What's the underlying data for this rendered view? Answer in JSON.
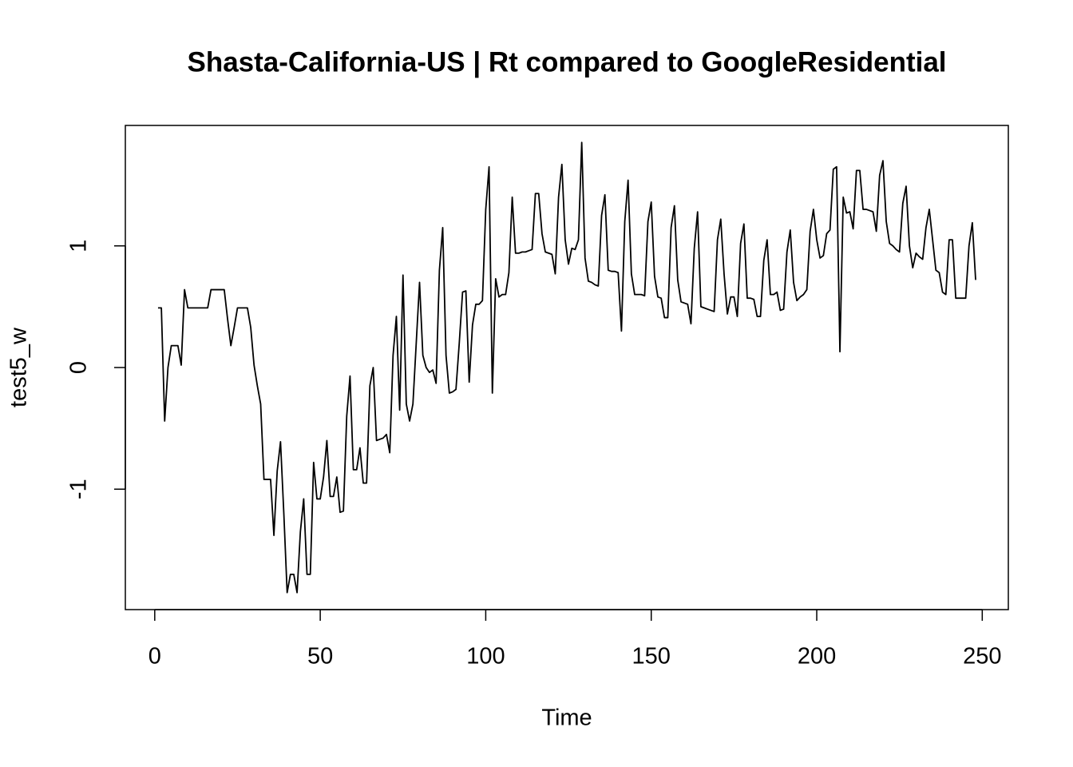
{
  "chart_data": {
    "type": "line",
    "title": "Shasta-California-US | Rt compared to GoogleResidential",
    "x_label": "Time",
    "y_label": "test5_w",
    "x": [
      1,
      2,
      3,
      4,
      5,
      6,
      7,
      8,
      9,
      10,
      11,
      12,
      13,
      14,
      15,
      16,
      17,
      18,
      19,
      20,
      21,
      22,
      23,
      24,
      25,
      26,
      27,
      28,
      29,
      30,
      31,
      32,
      33,
      34,
      35,
      36,
      37,
      38,
      39,
      40,
      41,
      42,
      43,
      44,
      45,
      46,
      47,
      48,
      49,
      50,
      51,
      52,
      53,
      54,
      55,
      56,
      57,
      58,
      59,
      60,
      61,
      62,
      63,
      64,
      65,
      66,
      67,
      68,
      69,
      70,
      71,
      72,
      73,
      74,
      75,
      76,
      77,
      78,
      79,
      80,
      81,
      82,
      83,
      84,
      85,
      86,
      87,
      88,
      89,
      90,
      91,
      92,
      93,
      94,
      95,
      96,
      97,
      98,
      99,
      100,
      101,
      102,
      103,
      104,
      105,
      106,
      107,
      108,
      109,
      110,
      111,
      112,
      113,
      114,
      115,
      116,
      117,
      118,
      119,
      120,
      121,
      122,
      123,
      124,
      125,
      126,
      127,
      128,
      129,
      130,
      131,
      132,
      133,
      134,
      135,
      136,
      137,
      138,
      139,
      140,
      141,
      142,
      143,
      144,
      145,
      146,
      147,
      148,
      149,
      150,
      151,
      152,
      153,
      154,
      155,
      156,
      157,
      158,
      159,
      160,
      161,
      162,
      163,
      164,
      165,
      166,
      167,
      168,
      169,
      170,
      171,
      172,
      173,
      174,
      175,
      176,
      177,
      178,
      179,
      180,
      181,
      182,
      183,
      184,
      185,
      186,
      187,
      188,
      189,
      190,
      191,
      192,
      193,
      194,
      195,
      196,
      197,
      198,
      199,
      200,
      201,
      202,
      203,
      204,
      205,
      206,
      207,
      208,
      209,
      210,
      211,
      212,
      213,
      214,
      215,
      216,
      217,
      218,
      219,
      220,
      221,
      222,
      223,
      224,
      225,
      226,
      227,
      228,
      229,
      230,
      231,
      232,
      233,
      234,
      235,
      236,
      237,
      238,
      239,
      240,
      241,
      242,
      243,
      244,
      245,
      246,
      247,
      248
    ],
    "series": [
      {
        "color": "#000000",
        "values": [
          0.49,
          0.49,
          -0.44,
          0.0,
          0.18,
          0.18,
          0.18,
          0.02,
          0.64,
          0.49,
          0.49,
          0.49,
          0.49,
          0.49,
          0.49,
          0.49,
          0.64,
          0.64,
          0.64,
          0.64,
          0.64,
          0.4,
          0.18,
          0.33,
          0.49,
          0.49,
          0.49,
          0.49,
          0.33,
          0.02,
          -0.15,
          -0.3,
          -0.92,
          -0.92,
          -0.92,
          -1.38,
          -0.85,
          -0.61,
          -1.2,
          -1.85,
          -1.7,
          -1.7,
          -1.85,
          -1.35,
          -1.08,
          -1.7,
          -1.7,
          -0.78,
          -1.08,
          -1.08,
          -0.9,
          -0.6,
          -1.06,
          -1.06,
          -0.9,
          -1.19,
          -1.18,
          -0.4,
          -0.07,
          -0.84,
          -0.84,
          -0.66,
          -0.95,
          -0.95,
          -0.15,
          0.0,
          -0.6,
          -0.59,
          -0.58,
          -0.55,
          -0.7,
          0.1,
          0.42,
          -0.35,
          0.76,
          -0.3,
          -0.44,
          -0.3,
          0.2,
          0.7,
          0.1,
          0.0,
          -0.04,
          -0.02,
          -0.13,
          0.8,
          1.15,
          0.1,
          -0.21,
          -0.2,
          -0.18,
          0.2,
          0.62,
          0.63,
          -0.12,
          0.35,
          0.52,
          0.52,
          0.55,
          1.3,
          1.65,
          -0.21,
          0.73,
          0.58,
          0.6,
          0.6,
          0.78,
          1.4,
          0.94,
          0.94,
          0.95,
          0.95,
          0.96,
          0.97,
          1.43,
          1.43,
          1.1,
          0.95,
          0.94,
          0.93,
          0.77,
          1.4,
          1.67,
          1.05,
          0.85,
          0.98,
          0.97,
          1.05,
          1.85,
          0.9,
          0.71,
          0.7,
          0.68,
          0.67,
          1.25,
          1.42,
          0.8,
          0.79,
          0.79,
          0.78,
          0.3,
          1.2,
          1.54,
          0.77,
          0.6,
          0.6,
          0.6,
          0.59,
          1.2,
          1.36,
          0.75,
          0.58,
          0.57,
          0.41,
          0.41,
          1.15,
          1.33,
          0.72,
          0.54,
          0.53,
          0.52,
          0.36,
          0.98,
          1.28,
          0.5,
          0.49,
          0.48,
          0.47,
          0.46,
          1.05,
          1.22,
          0.77,
          0.44,
          0.58,
          0.58,
          0.42,
          1.02,
          1.18,
          0.57,
          0.57,
          0.56,
          0.42,
          0.42,
          0.88,
          1.05,
          0.6,
          0.6,
          0.62,
          0.47,
          0.48,
          0.95,
          1.13,
          0.7,
          0.55,
          0.58,
          0.6,
          0.64,
          1.12,
          1.3,
          1.05,
          0.9,
          0.92,
          1.1,
          1.13,
          1.63,
          1.65,
          0.13,
          1.4,
          1.27,
          1.28,
          1.14,
          1.62,
          1.62,
          1.3,
          1.3,
          1.29,
          1.28,
          1.12,
          1.58,
          1.7,
          1.2,
          1.02,
          1.0,
          0.97,
          0.95,
          1.35,
          1.49,
          1.0,
          0.82,
          0.94,
          0.91,
          0.89,
          1.15,
          1.3,
          1.05,
          0.8,
          0.78,
          0.62,
          0.6,
          1.05,
          1.05,
          0.57,
          0.57,
          0.57,
          0.57,
          1.0,
          1.19,
          0.72
        ]
      }
    ],
    "xlim": [
      -8.88,
      257.88
    ],
    "ylim": [
      -1.99,
      1.99
    ],
    "xticks": [
      0,
      50,
      100,
      150,
      200,
      250
    ],
    "yticks": [
      -1,
      0,
      1
    ]
  }
}
